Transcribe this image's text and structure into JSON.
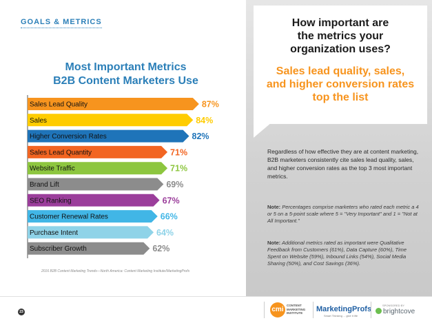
{
  "section_label": "GOALS & METRICS",
  "chart_title": [
    "Most Important Metrics",
    "B2B Content Marketers Use"
  ],
  "chart_data": {
    "type": "bar",
    "orientation": "horizontal",
    "title": "Most Important Metrics B2B Content Marketers Use",
    "categories": [
      "Sales Lead Quality",
      "Sales",
      "Higher Conversion Rates",
      "Sales Lead Quantity",
      "Website Traffic",
      "Brand Lift",
      "SEO Ranking",
      "Customer Renewal Rates",
      "Purchase Intent",
      "Subscriber Growth"
    ],
    "values": [
      87,
      84,
      82,
      71,
      71,
      69,
      67,
      66,
      64,
      62
    ],
    "value_labels": [
      "87%",
      "84%",
      "82%",
      "71%",
      "71%",
      "69%",
      "67%",
      "66%",
      "64%",
      "62%"
    ],
    "colors": [
      "#f7941e",
      "#ffcc00",
      "#1f74b9",
      "#f26522",
      "#8dc63f",
      "#8c8c8c",
      "#9b3e9b",
      "#41b6e6",
      "#8fd3e8",
      "#8c8c8c"
    ],
    "xlim": [
      0,
      100
    ]
  },
  "source": "2016 B2B Content Marketing Trends—North America: Content Marketing Institute/MarketingProfs",
  "question": [
    "How important are",
    "the metrics your",
    "organization uses?"
  ],
  "answer": [
    "Sales lead quality, sales,",
    "and higher conversion rates",
    "top the list"
  ],
  "body": "Regardless of how effective they are at content marketing, B2B marketers consistently cite sales lead quality, sales, and higher conversion rates as the top 3 most important metrics.",
  "note1_label": "Note:",
  "note1_text": " Percentages comprise marketers who rated each metric a 4 or 5 on a 5-point scale where 5 = \"Very Important\" and 1 = \"Not at All Important.\"",
  "note2_label": "Note:",
  "note2_text": " Additional metrics rated as important were Qualitative Feedback from Customers (61%), Data Capture (60%), Time Spent on Website (59%), Inbound Links (54%), Social Media Sharing (50%), and Cost Savings (36%).",
  "footer": {
    "page_number": "23",
    "cmi_mark": "cmi",
    "cmi_name": "CONTENT MARKETING INSTITUTE",
    "mp_name": "MarketingProfs",
    "mp_tagline": "Smart Thinking ... give it life",
    "sponsor_label": "SPONSORED BY",
    "sponsor_name": "brightcove"
  }
}
